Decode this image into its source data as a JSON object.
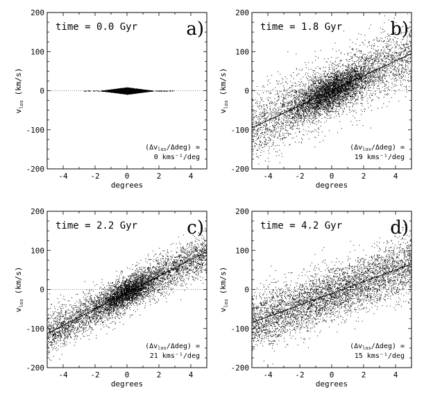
{
  "chart_data": [
    {
      "type": "scatter",
      "panel_letter": "a)",
      "title": "time = 0.0 Gyr",
      "xlabel": "degrees",
      "ylabel": "v_los (km/s)",
      "xlim": [
        -5,
        5
      ],
      "ylim": [
        -200,
        200
      ],
      "xticks": [
        "-4",
        "-2",
        "0",
        "2",
        "4"
      ],
      "yticks": [
        "-200",
        "-100",
        "0",
        "100",
        "200"
      ],
      "zero_line": "dotted",
      "fit": {
        "slope": 0,
        "intercept": 0
      },
      "annotation": [
        "(Δv_los/Δdeg) =",
        "0 kms⁻¹/deg"
      ],
      "cloud": {
        "center_x": 0,
        "center_y": 0,
        "sx": 0.9,
        "sy": 4,
        "n": 2800,
        "shape": "diamond",
        "width": 1.6
      }
    },
    {
      "type": "scatter",
      "panel_letter": "b)",
      "title": "time = 1.8 Gyr",
      "xlabel": "degrees",
      "ylabel": "v_los (km/s)",
      "xlim": [
        -5,
        5
      ],
      "ylim": [
        -200,
        200
      ],
      "xticks": [
        "-4",
        "-2",
        "0",
        "2",
        "4"
      ],
      "yticks": [
        "-200",
        "-100",
        "0",
        "100",
        "200"
      ],
      "zero_line": "dotted",
      "fit": {
        "slope": 19,
        "intercept": 0
      },
      "annotation": [
        "(Δv_los/Δdeg) =",
        "19 kms⁻¹/deg"
      ],
      "cloud": {
        "center_x": 0,
        "center_y": 0,
        "sx": 1.3,
        "sy": 22,
        "n": 3500,
        "halo_n": 3000,
        "halo_sy": 42
      }
    },
    {
      "type": "scatter",
      "panel_letter": "c)",
      "title": "time = 2.2 Gyr",
      "xlabel": "degrees",
      "ylabel": "v_los (km/s)",
      "xlim": [
        -5,
        5
      ],
      "ylim": [
        -200,
        200
      ],
      "xticks": [
        "-4",
        "-2",
        "0",
        "2",
        "4"
      ],
      "yticks": [
        "-200",
        "-100",
        "0",
        "100",
        "200"
      ],
      "zero_line": "dotted",
      "fit": {
        "slope": 21,
        "intercept": -8
      },
      "annotation": [
        "(Δv_los/Δdeg) =",
        "21 kms⁻¹/deg"
      ],
      "cloud": {
        "center_x": 0,
        "center_y": -8,
        "sx": 0.9,
        "sy": 16,
        "n": 2000,
        "halo_n": 3800,
        "halo_sy": 26
      }
    },
    {
      "type": "scatter",
      "panel_letter": "d)",
      "title": "time = 4.2 Gyr",
      "xlabel": "degrees",
      "ylabel": "v_los (km/s)",
      "xlim": [
        -5,
        5
      ],
      "ylim": [
        -200,
        200
      ],
      "xticks": [
        "-4",
        "-2",
        "0",
        "2",
        "4"
      ],
      "yticks": [
        "-200",
        "-100",
        "0",
        "100",
        "200"
      ],
      "zero_line": "dotted",
      "fit": {
        "slope": 15,
        "intercept": -10
      },
      "annotation": [
        "(Δv_los/Δdeg) =",
        "15 kms⁻¹/deg"
      ],
      "cloud": {
        "center_x": 0,
        "center_y": -10,
        "sx": 1.2,
        "sy": 30,
        "n": 400,
        "halo_n": 4200,
        "halo_sy": 36
      }
    }
  ]
}
